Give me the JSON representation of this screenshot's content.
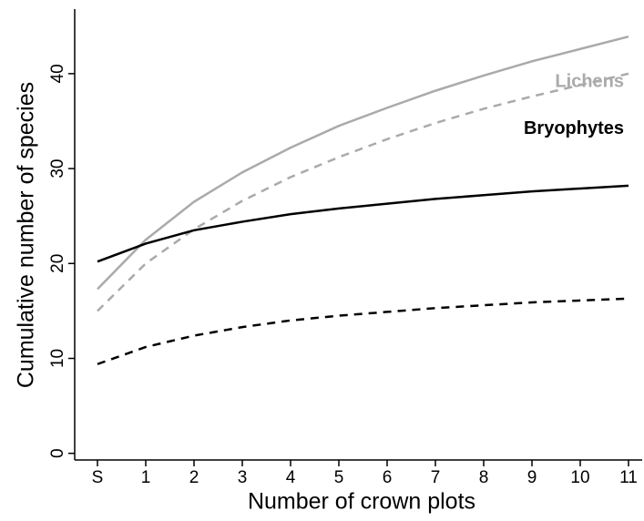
{
  "chart_data": {
    "type": "line",
    "xlabel": "Number of crown plots",
    "ylabel": "Cumulative number of species",
    "categories": [
      "S",
      "1",
      "2",
      "3",
      "4",
      "5",
      "6",
      "7",
      "8",
      "9",
      "10",
      "11"
    ],
    "series": [
      {
        "name": "Lichens",
        "color": "#aaaaaa",
        "dashed": false,
        "values": [
          17.3,
          22.5,
          26.5,
          29.6,
          32.2,
          34.5,
          36.4,
          38.2,
          39.8,
          41.3,
          42.6,
          43.9
        ]
      },
      {
        "color": "#aaaaaa",
        "dashed": true,
        "values": [
          15.0,
          20.0,
          23.6,
          26.6,
          29.1,
          31.2,
          33.1,
          34.8,
          36.3,
          37.6,
          38.8,
          40.0
        ]
      },
      {
        "name": "Bryophytes",
        "color": "#000000",
        "dashed": false,
        "values": [
          20.2,
          22.1,
          23.5,
          24.4,
          25.2,
          25.8,
          26.3,
          26.8,
          27.2,
          27.6,
          27.9,
          28.2
        ]
      },
      {
        "color": "#000000",
        "dashed": true,
        "values": [
          9.4,
          11.2,
          12.4,
          13.3,
          14.0,
          14.5,
          14.9,
          15.3,
          15.6,
          15.9,
          16.1,
          16.3
        ]
      }
    ],
    "ylim": [
      -0.7,
      46.8
    ],
    "yticks": [
      0,
      10,
      20,
      30,
      40
    ]
  }
}
